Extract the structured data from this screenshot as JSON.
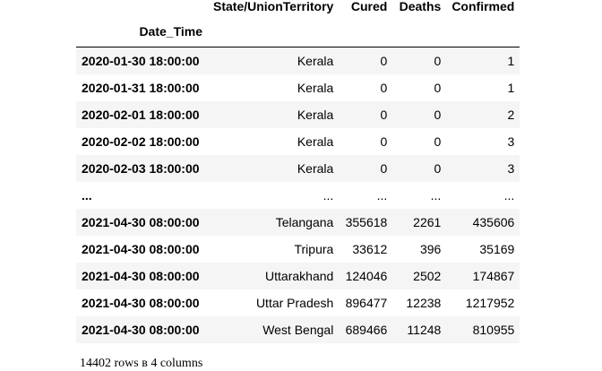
{
  "table": {
    "columns": [
      "State/UnionTerritory",
      "Cured",
      "Deaths",
      "Confirmed"
    ],
    "index_name": "Date_Time",
    "rows": [
      {
        "index": "2020-01-30 18:00:00",
        "state": "Kerala",
        "cured": "0",
        "deaths": "0",
        "confirmed": "1"
      },
      {
        "index": "2020-01-31 18:00:00",
        "state": "Kerala",
        "cured": "0",
        "deaths": "0",
        "confirmed": "1"
      },
      {
        "index": "2020-02-01 18:00:00",
        "state": "Kerala",
        "cured": "0",
        "deaths": "0",
        "confirmed": "2"
      },
      {
        "index": "2020-02-02 18:00:00",
        "state": "Kerala",
        "cured": "0",
        "deaths": "0",
        "confirmed": "3"
      },
      {
        "index": "2020-02-03 18:00:00",
        "state": "Kerala",
        "cured": "0",
        "deaths": "0",
        "confirmed": "3"
      },
      {
        "index": "...",
        "state": "...",
        "cured": "...",
        "deaths": "...",
        "confirmed": "..."
      },
      {
        "index": "2021-04-30 08:00:00",
        "state": "Telangana",
        "cured": "355618",
        "deaths": "2261",
        "confirmed": "435606"
      },
      {
        "index": "2021-04-30 08:00:00",
        "state": "Tripura",
        "cured": "33612",
        "deaths": "396",
        "confirmed": "35169"
      },
      {
        "index": "2021-04-30 08:00:00",
        "state": "Uttarakhand",
        "cured": "124046",
        "deaths": "2502",
        "confirmed": "174867"
      },
      {
        "index": "2021-04-30 08:00:00",
        "state": "Uttar Pradesh",
        "cured": "896477",
        "deaths": "12238",
        "confirmed": "1217952"
      },
      {
        "index": "2021-04-30 08:00:00",
        "state": "West Bengal",
        "cured": "689466",
        "deaths": "11248",
        "confirmed": "810955"
      }
    ],
    "shape_text": "14402 rows в 4 columns"
  }
}
